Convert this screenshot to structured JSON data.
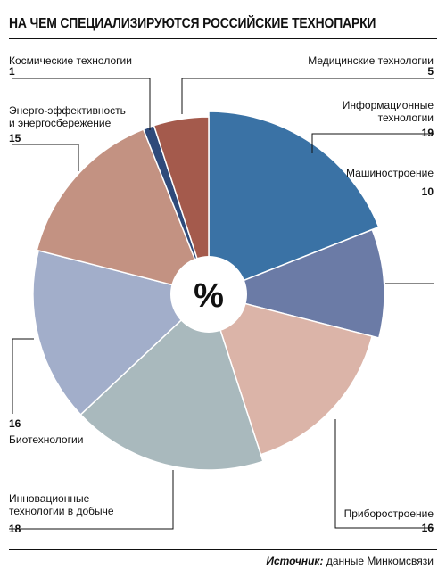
{
  "title": "НА ЧЕМ СПЕЦИАЛИЗИРУЮТСЯ РОССИЙСКИЕ ТЕХНОПАРКИ",
  "center_symbol": "%",
  "source": {
    "label": "Источник:",
    "text": " данные Минкомсвязи"
  },
  "chart_data": {
    "type": "pie",
    "title": "НА ЧЕМ СПЕЦИАЛИЗИРУЮТСЯ РОССИЙСКИЕ ТЕХНОПАРКИ",
    "unit": "%",
    "slices": [
      {
        "label": [
          "Информационные",
          "технологии"
        ],
        "value": 19,
        "color": "#3a72a5"
      },
      {
        "label": [
          "Машиностроение"
        ],
        "value": 10,
        "color": "#6b7ba6"
      },
      {
        "label": [
          "Приборостроение"
        ],
        "value": 16,
        "color": "#dbb4a8"
      },
      {
        "label": [
          "Инновационные",
          "технологии в добыче"
        ],
        "value": 18,
        "color": "#a9b9bd"
      },
      {
        "label": [
          "Биотехнологии"
        ],
        "value": 16,
        "color": "#a2aeca"
      },
      {
        "label": [
          "Энерго-эффективность",
          "и энергосбережение"
        ],
        "value": 15,
        "color": "#c39282"
      },
      {
        "label": [
          "Космические технологии"
        ],
        "value": 1,
        "color": "#2f4a7a"
      },
      {
        "label": [
          "Медицинские технологии"
        ],
        "value": 5,
        "color": "#a45a4c"
      }
    ]
  }
}
